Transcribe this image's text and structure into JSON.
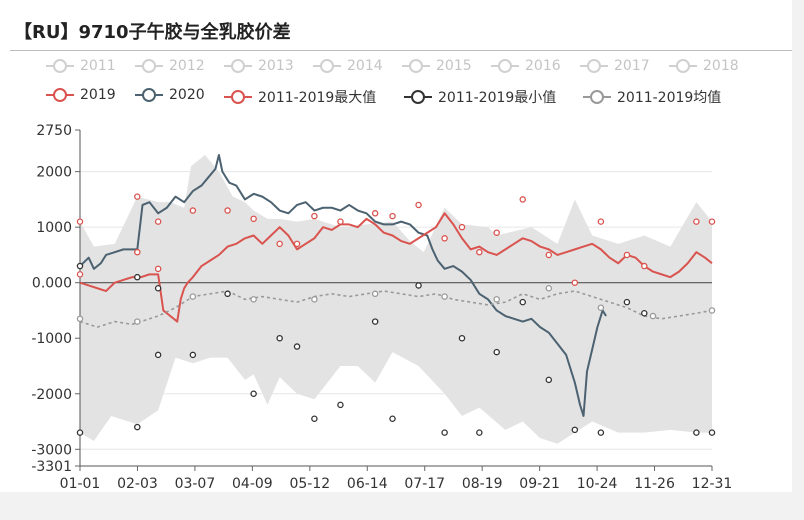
{
  "title": "【RU】9710子午胶与全乳胶价差",
  "colors": {
    "c2019": "#d9534f",
    "c2020": "#4c6271",
    "cmax": "#d9534f",
    "cmin": "#333333",
    "cavg": "#999999",
    "band": "#e3e3e3",
    "faded": "#d0d0d0"
  },
  "legend_row1": [
    "2011",
    "2012",
    "2013",
    "2014",
    "2015",
    "2016",
    "2017",
    "2018"
  ],
  "legend_row2": [
    "2019",
    "2020",
    "2011-2019最大值",
    "2011-2019最小值",
    "2011-2019均值"
  ],
  "chart_data": {
    "type": "line",
    "x_ticks": [
      "01-01",
      "02-03",
      "03-07",
      "04-09",
      "05-12",
      "06-14",
      "07-17",
      "08-19",
      "09-21",
      "10-24",
      "11-26",
      "12-31"
    ],
    "y_ticks": [
      "2750",
      "2000",
      "1000",
      "0.000",
      "-1000",
      "-2000",
      "-3000",
      "-3301"
    ],
    "ylim": [
      -3301,
      2750
    ],
    "xlim": [
      0,
      364
    ],
    "band": {
      "upper": [
        [
          0,
          1100
        ],
        [
          8,
          650
        ],
        [
          20,
          700
        ],
        [
          33,
          1550
        ],
        [
          45,
          1450
        ],
        [
          52,
          1450
        ],
        [
          60,
          1350
        ],
        [
          64,
          2100
        ],
        [
          72,
          2300
        ],
        [
          80,
          2000
        ],
        [
          88,
          1550
        ],
        [
          95,
          1450
        ],
        [
          100,
          1300
        ],
        [
          108,
          1150
        ],
        [
          115,
          1150
        ],
        [
          125,
          1100
        ],
        [
          135,
          1150
        ],
        [
          150,
          1000
        ],
        [
          165,
          1050
        ],
        [
          180,
          1100
        ],
        [
          190,
          750
        ],
        [
          198,
          550
        ],
        [
          210,
          1350
        ],
        [
          220,
          1050
        ],
        [
          235,
          1000
        ],
        [
          240,
          850
        ],
        [
          260,
          1000
        ],
        [
          275,
          700
        ],
        [
          285,
          1500
        ],
        [
          295,
          850
        ],
        [
          310,
          700
        ],
        [
          325,
          850
        ],
        [
          340,
          650
        ],
        [
          355,
          1450
        ],
        [
          364,
          1100
        ]
      ],
      "lower": [
        [
          0,
          -2700
        ],
        [
          8,
          -2850
        ],
        [
          18,
          -2400
        ],
        [
          33,
          -2550
        ],
        [
          45,
          -2300
        ],
        [
          55,
          -1350
        ],
        [
          65,
          -1450
        ],
        [
          75,
          -1350
        ],
        [
          85,
          -1350
        ],
        [
          95,
          -1750
        ],
        [
          100,
          -1650
        ],
        [
          108,
          -2200
        ],
        [
          115,
          -1700
        ],
        [
          125,
          -2000
        ],
        [
          135,
          -2100
        ],
        [
          150,
          -1500
        ],
        [
          160,
          -1500
        ],
        [
          170,
          -1800
        ],
        [
          180,
          -1250
        ],
        [
          195,
          -1500
        ],
        [
          210,
          -2000
        ],
        [
          220,
          -2400
        ],
        [
          230,
          -2250
        ],
        [
          245,
          -2650
        ],
        [
          255,
          -2500
        ],
        [
          265,
          -2800
        ],
        [
          275,
          -2900
        ],
        [
          285,
          -2700
        ],
        [
          295,
          -2500
        ],
        [
          310,
          -2700
        ],
        [
          325,
          -2700
        ],
        [
          340,
          -2650
        ],
        [
          355,
          -2700
        ],
        [
          364,
          -2700
        ]
      ]
    },
    "series": [
      {
        "name": "2020",
        "values": [
          [
            0,
            300
          ],
          [
            5,
            450
          ],
          [
            8,
            250
          ],
          [
            12,
            350
          ],
          [
            15,
            500
          ],
          [
            20,
            550
          ],
          [
            25,
            600
          ],
          [
            30,
            600
          ],
          [
            33,
            600
          ],
          [
            36,
            1400
          ],
          [
            40,
            1450
          ],
          [
            45,
            1250
          ],
          [
            50,
            1350
          ],
          [
            55,
            1550
          ],
          [
            60,
            1450
          ],
          [
            65,
            1650
          ],
          [
            70,
            1750
          ],
          [
            74,
            1900
          ],
          [
            78,
            2050
          ],
          [
            80,
            2300
          ],
          [
            82,
            2000
          ],
          [
            86,
            1800
          ],
          [
            90,
            1750
          ],
          [
            95,
            1500
          ],
          [
            100,
            1600
          ],
          [
            105,
            1550
          ],
          [
            110,
            1450
          ],
          [
            115,
            1300
          ],
          [
            120,
            1250
          ],
          [
            125,
            1400
          ],
          [
            130,
            1450
          ],
          [
            135,
            1300
          ],
          [
            140,
            1350
          ],
          [
            145,
            1350
          ],
          [
            150,
            1300
          ],
          [
            155,
            1400
          ],
          [
            160,
            1300
          ],
          [
            165,
            1250
          ],
          [
            170,
            1100
          ],
          [
            175,
            1050
          ],
          [
            180,
            1050
          ],
          [
            185,
            1100
          ],
          [
            190,
            1050
          ],
          [
            195,
            900
          ],
          [
            200,
            850
          ],
          [
            203,
            600
          ],
          [
            206,
            400
          ],
          [
            210,
            250
          ],
          [
            215,
            300
          ],
          [
            220,
            200
          ],
          [
            225,
            50
          ],
          [
            230,
            -200
          ],
          [
            235,
            -300
          ],
          [
            240,
            -500
          ],
          [
            245,
            -600
          ],
          [
            250,
            -650
          ],
          [
            255,
            -700
          ],
          [
            260,
            -650
          ],
          [
            265,
            -800
          ],
          [
            270,
            -900
          ],
          [
            275,
            -1100
          ],
          [
            280,
            -1300
          ],
          [
            285,
            -1800
          ],
          [
            288,
            -2200
          ],
          [
            290,
            -2400
          ],
          [
            292,
            -1600
          ],
          [
            295,
            -1200
          ],
          [
            298,
            -800
          ],
          [
            301,
            -500
          ],
          [
            303,
            -600
          ]
        ]
      },
      {
        "name": "2019",
        "values": [
          [
            0,
            0
          ],
          [
            5,
            -50
          ],
          [
            10,
            -100
          ],
          [
            15,
            -150
          ],
          [
            20,
            0
          ],
          [
            25,
            50
          ],
          [
            30,
            100
          ],
          [
            35,
            100
          ],
          [
            40,
            150
          ],
          [
            45,
            150
          ],
          [
            48,
            -500
          ],
          [
            52,
            -600
          ],
          [
            56,
            -700
          ],
          [
            58,
            -300
          ],
          [
            60,
            -100
          ],
          [
            62,
            0
          ],
          [
            65,
            100
          ],
          [
            70,
            300
          ],
          [
            75,
            400
          ],
          [
            80,
            500
          ],
          [
            85,
            650
          ],
          [
            90,
            700
          ],
          [
            95,
            800
          ],
          [
            100,
            850
          ],
          [
            105,
            700
          ],
          [
            110,
            850
          ],
          [
            115,
            1000
          ],
          [
            120,
            850
          ],
          [
            125,
            600
          ],
          [
            130,
            700
          ],
          [
            135,
            800
          ],
          [
            140,
            1000
          ],
          [
            145,
            950
          ],
          [
            150,
            1050
          ],
          [
            155,
            1050
          ],
          [
            160,
            1000
          ],
          [
            165,
            1150
          ],
          [
            170,
            1050
          ],
          [
            175,
            900
          ],
          [
            180,
            850
          ],
          [
            185,
            750
          ],
          [
            190,
            700
          ],
          [
            195,
            800
          ],
          [
            200,
            900
          ],
          [
            205,
            1000
          ],
          [
            210,
            1250
          ],
          [
            215,
            1050
          ],
          [
            220,
            800
          ],
          [
            225,
            600
          ],
          [
            230,
            650
          ],
          [
            235,
            550
          ],
          [
            240,
            500
          ],
          [
            245,
            600
          ],
          [
            250,
            700
          ],
          [
            255,
            800
          ],
          [
            260,
            750
          ],
          [
            265,
            650
          ],
          [
            270,
            600
          ],
          [
            275,
            500
          ],
          [
            280,
            550
          ],
          [
            285,
            600
          ],
          [
            290,
            650
          ],
          [
            295,
            700
          ],
          [
            300,
            600
          ],
          [
            305,
            450
          ],
          [
            310,
            350
          ],
          [
            315,
            500
          ],
          [
            320,
            450
          ],
          [
            325,
            300
          ],
          [
            330,
            200
          ],
          [
            335,
            150
          ],
          [
            340,
            100
          ],
          [
            345,
            200
          ],
          [
            350,
            350
          ],
          [
            355,
            550
          ],
          [
            360,
            450
          ],
          [
            364,
            350
          ]
        ]
      },
      {
        "name": "2011-2019均值",
        "values": [
          [
            0,
            -700
          ],
          [
            10,
            -800
          ],
          [
            20,
            -700
          ],
          [
            30,
            -750
          ],
          [
            35,
            -700
          ],
          [
            45,
            -600
          ],
          [
            55,
            -450
          ],
          [
            65,
            -250
          ],
          [
            75,
            -200
          ],
          [
            85,
            -150
          ],
          [
            95,
            -300
          ],
          [
            105,
            -250
          ],
          [
            115,
            -300
          ],
          [
            125,
            -350
          ],
          [
            135,
            -250
          ],
          [
            145,
            -200
          ],
          [
            155,
            -250
          ],
          [
            165,
            -200
          ],
          [
            175,
            -150
          ],
          [
            185,
            -200
          ],
          [
            195,
            -250
          ],
          [
            205,
            -200
          ],
          [
            215,
            -300
          ],
          [
            225,
            -350
          ],
          [
            235,
            -400
          ],
          [
            245,
            -350
          ],
          [
            255,
            -200
          ],
          [
            265,
            -300
          ],
          [
            275,
            -200
          ],
          [
            285,
            -150
          ],
          [
            295,
            -250
          ],
          [
            305,
            -350
          ],
          [
            315,
            -450
          ],
          [
            325,
            -600
          ],
          [
            335,
            -650
          ],
          [
            345,
            -600
          ],
          [
            355,
            -550
          ],
          [
            364,
            -500
          ]
        ]
      }
    ],
    "max_points": [
      [
        0,
        1100
      ],
      [
        0,
        150
      ],
      [
        33,
        1550
      ],
      [
        33,
        550
      ],
      [
        45,
        1100
      ],
      [
        45,
        250
      ],
      [
        65,
        1300
      ],
      [
        85,
        1300
      ],
      [
        100,
        1150
      ],
      [
        115,
        700
      ],
      [
        125,
        700
      ],
      [
        135,
        1200
      ],
      [
        150,
        1100
      ],
      [
        170,
        1250
      ],
      [
        180,
        1200
      ],
      [
        195,
        1400
      ],
      [
        210,
        800
      ],
      [
        220,
        1000
      ],
      [
        230,
        550
      ],
      [
        240,
        900
      ],
      [
        255,
        1500
      ],
      [
        270,
        500
      ],
      [
        285,
        0
      ],
      [
        300,
        1100
      ],
      [
        315,
        500
      ],
      [
        325,
        300
      ],
      [
        355,
        1100
      ],
      [
        364,
        1100
      ]
    ],
    "min_points": [
      [
        0,
        -2700
      ],
      [
        0,
        300
      ],
      [
        33,
        -2600
      ],
      [
        33,
        100
      ],
      [
        45,
        -1300
      ],
      [
        45,
        -100
      ],
      [
        65,
        -1300
      ],
      [
        85,
        -200
      ],
      [
        100,
        -2000
      ],
      [
        115,
        -1000
      ],
      [
        125,
        -1150
      ],
      [
        135,
        -2450
      ],
      [
        150,
        -2200
      ],
      [
        170,
        -700
      ],
      [
        180,
        -2450
      ],
      [
        195,
        -50
      ],
      [
        210,
        -2700
      ],
      [
        220,
        -1000
      ],
      [
        230,
        -2700
      ],
      [
        240,
        -1250
      ],
      [
        255,
        -350
      ],
      [
        270,
        -1750
      ],
      [
        285,
        -2650
      ],
      [
        300,
        -2700
      ],
      [
        315,
        -350
      ],
      [
        325,
        -550
      ],
      [
        355,
        -2700
      ],
      [
        364,
        -2700
      ]
    ],
    "avg_points": [
      [
        0,
        -650
      ],
      [
        33,
        -700
      ],
      [
        65,
        -250
      ],
      [
        100,
        -300
      ],
      [
        135,
        -300
      ],
      [
        170,
        -200
      ],
      [
        210,
        -250
      ],
      [
        240,
        -300
      ],
      [
        270,
        -100
      ],
      [
        300,
        -450
      ],
      [
        330,
        -600
      ],
      [
        364,
        -500
      ]
    ]
  }
}
